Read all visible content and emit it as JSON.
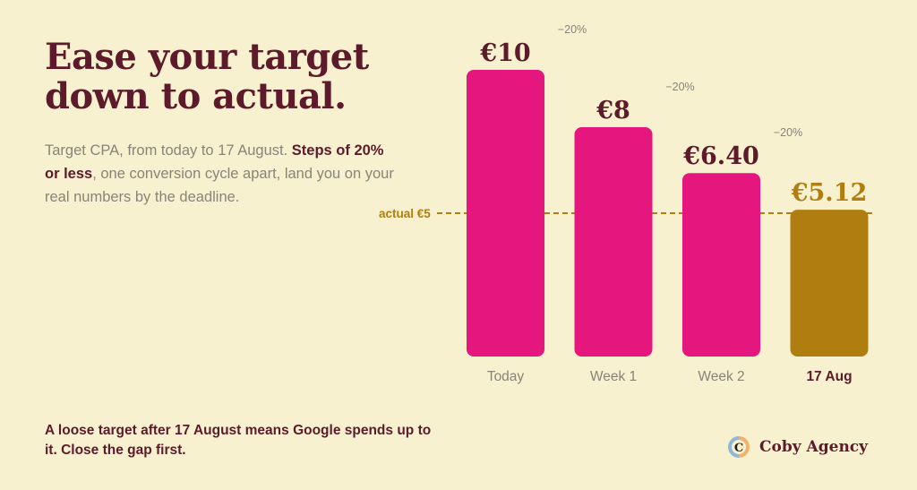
{
  "headline": {
    "line1": "Ease your target",
    "line2": "down to actual."
  },
  "subtitle": {
    "part1": "Target CPA, from today to 17 August. ",
    "bold": "Steps of 20% or less",
    "part2": ", one conversion cycle apart, land you on your real numbers by the deadline."
  },
  "footnote": "A loose target after 17 August means Google spends up to it. Close the gap first.",
  "brand": {
    "name": "Coby Agency",
    "logo_letter": "C"
  },
  "colors": {
    "bar": "#e5177e",
    "final_bar": "#b07d10",
    "text_dark": "#5c1a2b",
    "muted": "#8a8378",
    "background": "#f7f1d0"
  },
  "chart_data": {
    "type": "bar",
    "categories": [
      "Today",
      "Week 1",
      "Week 2",
      "17 Aug"
    ],
    "values": [
      10,
      8,
      6.4,
      5.12
    ],
    "value_labels": [
      "€10",
      "€8",
      "€6.40",
      "€5.12"
    ],
    "step_labels": [
      "−20%",
      "−20%",
      "−20%"
    ],
    "highlight_last": true,
    "reference_line": {
      "value": 5,
      "label": "actual €5",
      "style": "dashed"
    },
    "ylim": [
      0,
      10
    ],
    "grid": false
  }
}
